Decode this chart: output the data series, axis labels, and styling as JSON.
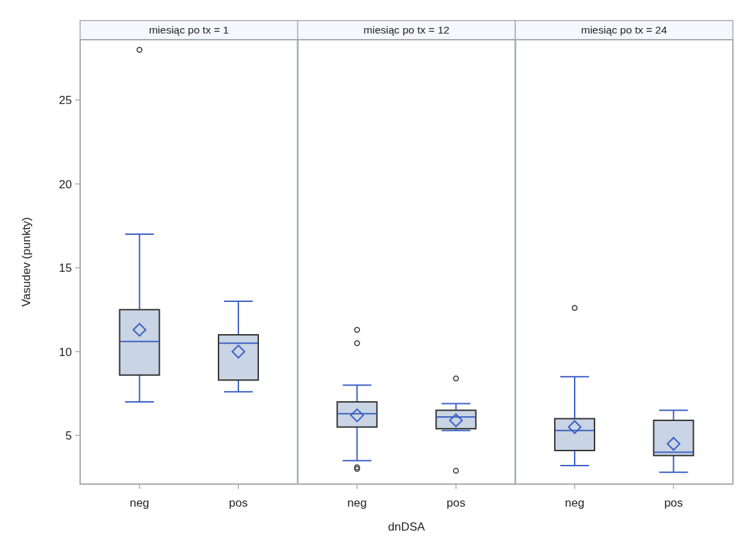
{
  "chart_data": [
    {
      "type": "box",
      "title": "miesiąc po tx = 1",
      "ylabel": "Vasudev (punkty)",
      "categories": [
        "neg",
        "pos"
      ],
      "ylim": [
        2.1,
        28.6
      ],
      "yticks": [
        5,
        10,
        15,
        20,
        25
      ],
      "marker": "diamond",
      "series": [
        {
          "color": "#c9d4e4",
          "boxes": [
            {
              "low": 7.0,
              "q1": 8.6,
              "median": 10.6,
              "q3": 12.5,
              "high": 17.0,
              "mean": 11.3,
              "outliers": [
                28.0
              ]
            },
            {
              "low": 7.6,
              "q1": 8.3,
              "median": 10.5,
              "q3": 11.0,
              "high": 13.0,
              "mean": 10.0
            }
          ]
        }
      ]
    },
    {
      "type": "box",
      "title": "miesiąc po tx = 12",
      "xlabel": "dnDSA",
      "categories": [
        "neg",
        "pos"
      ],
      "ylim": [
        2.1,
        28.6
      ],
      "tick_labels": "x",
      "marker": "diamond",
      "series": [
        {
          "color": "#c9d4e4",
          "boxes": [
            {
              "low": 3.5,
              "q1": 5.5,
              "median": 6.3,
              "q3": 7.0,
              "high": 8.0,
              "mean": 6.2,
              "outliers": [
                11.3,
                10.5,
                3.1,
                3.0
              ]
            },
            {
              "low": 5.3,
              "q1": 5.4,
              "median": 6.1,
              "q3": 6.5,
              "high": 6.9,
              "mean": 5.9,
              "outliers": [
                8.4,
                2.9
              ]
            }
          ]
        }
      ]
    },
    {
      "type": "box",
      "title": "miesiąc po tx = 24",
      "categories": [
        "neg",
        "pos"
      ],
      "ylim": [
        2.1,
        28.6
      ],
      "tick_labels": "x",
      "marker": "diamond",
      "series": [
        {
          "color": "#c9d4e4",
          "boxes": [
            {
              "low": 3.2,
              "q1": 4.1,
              "median": 5.3,
              "q3": 6.0,
              "high": 8.5,
              "mean": 5.5,
              "outliers": [
                12.6
              ]
            },
            {
              "low": 2.8,
              "q1": 3.8,
              "median": 4.0,
              "q3": 5.9,
              "high": 6.5,
              "mean": 4.5
            }
          ]
        }
      ]
    }
  ]
}
